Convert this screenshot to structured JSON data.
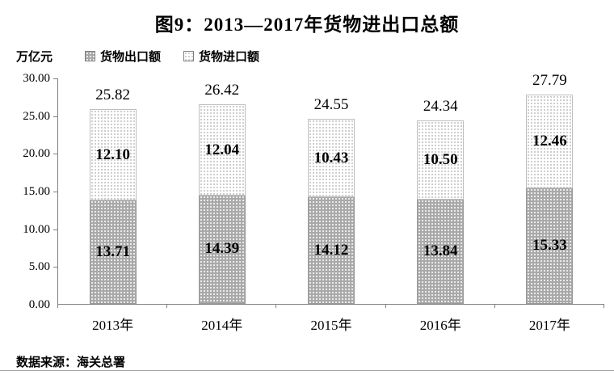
{
  "title": "图9：2013—2017年货物进出口总额",
  "y_axis_unit": "万亿元",
  "legend": {
    "export_label": "货物出口额",
    "import_label": "货物进口额"
  },
  "footer": {
    "source_label": "数据来源：海关总署"
  },
  "colors": {
    "export_fill": "#a9a9a9",
    "export_dots": "#ffffff",
    "import_fill": "#ffffff",
    "import_dots": "#bdbdbd",
    "axis": "#808080",
    "text": "#000000"
  },
  "chart_data": {
    "type": "bar",
    "stacked": true,
    "title": "图9：2013—2017年货物进出口总额",
    "ylabel": "万亿元",
    "xlabel": "",
    "categories": [
      "2013年",
      "2014年",
      "2015年",
      "2016年",
      "2017年"
    ],
    "series": [
      {
        "name": "货物出口额",
        "values": [
          13.71,
          14.39,
          14.12,
          13.84,
          15.33
        ]
      },
      {
        "name": "货物进口额",
        "values": [
          12.1,
          12.04,
          10.43,
          10.5,
          12.46
        ]
      }
    ],
    "totals": [
      25.82,
      26.42,
      24.55,
      24.34,
      27.79
    ],
    "ylim": [
      0,
      30
    ],
    "y_ticks": [
      "30.00",
      "25.00",
      "20.00",
      "15.00",
      "10.00",
      "5.00",
      "0.00"
    ],
    "y_tick_step": 5,
    "grid": false,
    "legend_position": "top-left"
  }
}
